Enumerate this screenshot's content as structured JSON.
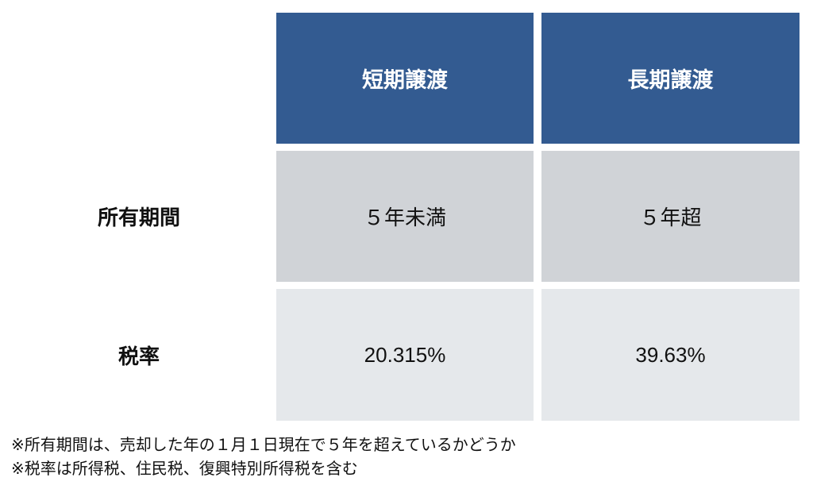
{
  "table": {
    "columns": [
      "短期譲渡",
      "長期譲渡"
    ],
    "rows": [
      [
        "所有期間",
        "５年未満",
        "５年超"
      ],
      [
        "税率",
        "20.315%",
        "39.63%"
      ]
    ]
  },
  "notes": [
    "※所有期間は、売却した年の１月１日現在で５年を超えているかどうか",
    "※税率は所得税、住民税、復興特別所得税を含む"
  ]
}
